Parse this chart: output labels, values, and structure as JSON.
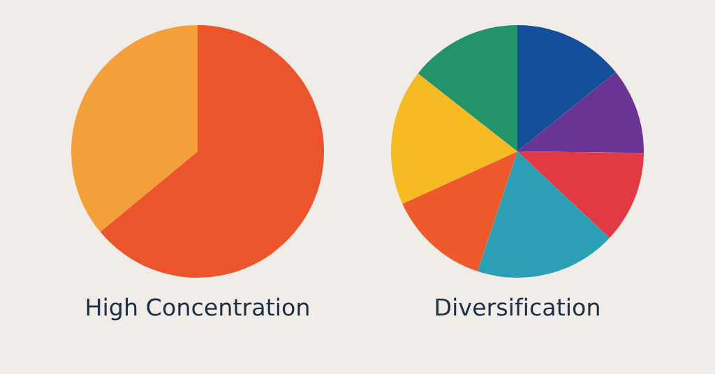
{
  "chart_data": [
    {
      "type": "pie",
      "title": "High Concentration",
      "categories": [
        null,
        null
      ],
      "values": [
        64,
        36
      ],
      "colors": [
        "#ec542c",
        "#f4a03a"
      ]
    },
    {
      "type": "pie",
      "title": "Diversification",
      "categories": [
        null,
        null,
        null,
        null,
        null,
        null,
        null
      ],
      "values": [
        14.2,
        11,
        11.8,
        18.1,
        13.1,
        17.4,
        14.4
      ],
      "colors": [
        "#154f9a",
        "#6a3494",
        "#e23a45",
        "#2c9fb5",
        "#ee5a2c",
        "#f6bb22",
        "#23946a"
      ]
    }
  ]
}
